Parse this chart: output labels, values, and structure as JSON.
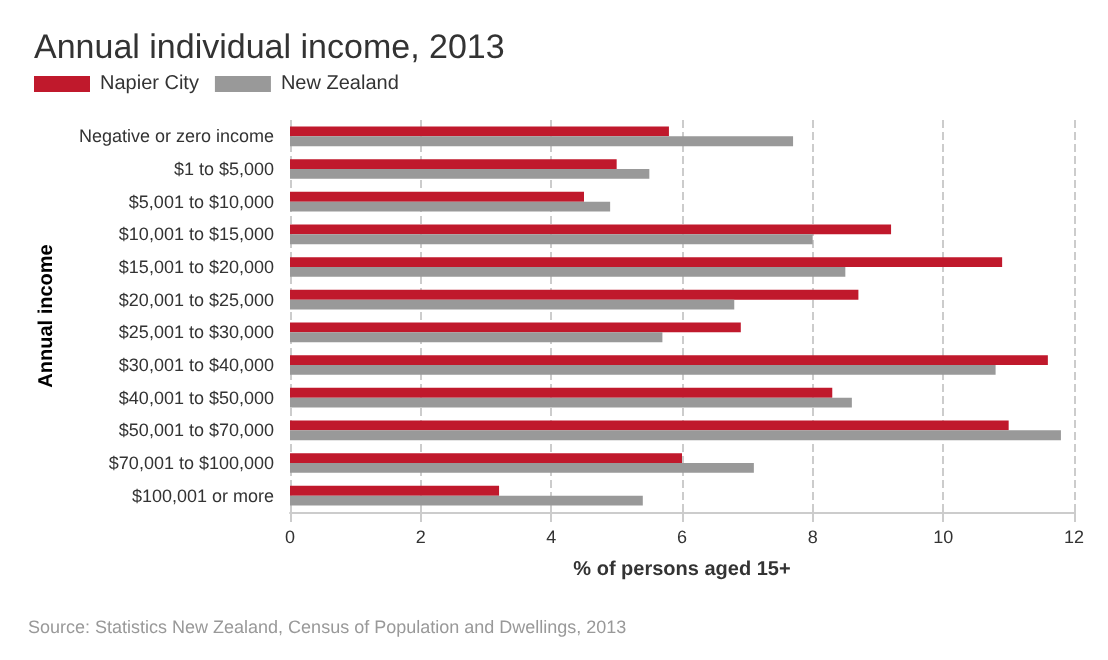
{
  "chart_data": {
    "type": "bar",
    "orientation": "horizontal",
    "title": "Annual individual income, 2013",
    "categories": [
      "Negative or zero income",
      "$1 to $5,000",
      "$5,001 to $10,000",
      "$10,001 to $15,000",
      "$15,001 to $20,000",
      "$20,001 to $25,000",
      "$25,001 to $30,000",
      "$30,001 to $40,000",
      "$40,001 to $50,000",
      "$50,001 to $70,000",
      "$70,001 to $100,000",
      "$100,001 or more"
    ],
    "series": [
      {
        "name": "Napier City",
        "color": "#c0192c",
        "values": [
          5.8,
          5.0,
          4.5,
          9.2,
          10.9,
          8.7,
          6.9,
          11.6,
          8.3,
          11.0,
          6.0,
          3.2
        ]
      },
      {
        "name": "New Zealand",
        "color": "#999999",
        "values": [
          7.7,
          5.5,
          4.9,
          8.0,
          8.5,
          6.8,
          5.7,
          10.8,
          8.6,
          11.8,
          7.1,
          5.4
        ]
      }
    ],
    "xlim": [
      0,
      12
    ],
    "xticks": [
      0,
      2,
      4,
      6,
      8,
      10,
      12
    ],
    "xlabel": "% of persons aged 15+",
    "ylabel": "Annual income",
    "grid": "x",
    "legend": "top left",
    "annotations": [
      "Source: Statistics New Zealand, Census of Population and Dwellings, 2013"
    ]
  }
}
